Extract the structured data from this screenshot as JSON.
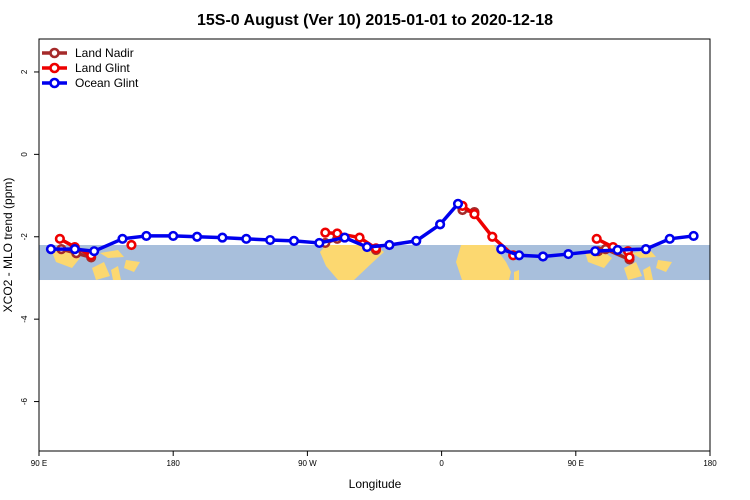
{
  "chart_data": {
    "type": "line",
    "title": "15S-0 August (Ver 10)   2015-01-01 to 2020-12-18",
    "xlabel": "Longitude",
    "ylabel": "XCO2 - MLO trend (ppm)",
    "xlim": [
      90,
      540
    ],
    "ylim": [
      -7.2,
      2.8
    ],
    "x_ticks": [
      {
        "value": 90,
        "label": "90 E"
      },
      {
        "value": 180,
        "label": "180"
      },
      {
        "value": 270,
        "label": "90 W"
      },
      {
        "value": 360,
        "label": "0"
      },
      {
        "value": 450,
        "label": "90 E"
      },
      {
        "value": 540,
        "label": "180"
      }
    ],
    "y_ticks": [
      {
        "value": 2,
        "label": "2"
      },
      {
        "value": 0,
        "label": "0"
      },
      {
        "value": -2,
        "label": "-2"
      },
      {
        "value": -4,
        "label": "-4"
      },
      {
        "value": -6,
        "label": "-6"
      }
    ],
    "background_band": {
      "ymin": -3.05,
      "ymax": -2.2,
      "ocean_color": "#a8bfdc",
      "land_color": "#fcd870"
    },
    "legend_position": "top-left",
    "series": [
      {
        "name": "Land Nadir",
        "color": "#a52a2a",
        "segments": [
          [
            [
              105,
              -2.3
            ],
            [
              115,
              -2.4
            ],
            [
              125,
              -2.5
            ]
          ],
          [
            [
              282,
              -2.15
            ],
            [
              290,
              -2.05
            ]
          ],
          [
            [
              316,
              -2.32
            ]
          ],
          [
            [
              374,
              -1.35
            ],
            [
              382,
              -1.4
            ]
          ],
          [
            [
              465,
              -2.35
            ],
            [
              470,
              -2.3
            ],
            [
              486,
              -2.55
            ]
          ]
        ]
      },
      {
        "name": "Land Glint",
        "color": "#ee0000",
        "segments": [
          [
            [
              104,
              -2.05
            ],
            [
              114,
              -2.25
            ],
            [
              125,
              -2.45
            ]
          ],
          [
            [
              152,
              -2.2
            ]
          ],
          [
            [
              282,
              -1.9
            ],
            [
              290,
              -1.92
            ],
            [
              305,
              -2.02
            ],
            [
              316,
              -2.28
            ]
          ],
          [
            [
              374,
              -1.25
            ],
            [
              382,
              -1.45
            ],
            [
              394,
              -2.0
            ],
            [
              408,
              -2.45
            ]
          ],
          [
            [
              464,
              -2.05
            ],
            [
              475,
              -2.25
            ],
            [
              485,
              -2.35
            ],
            [
              486,
              -2.5
            ]
          ]
        ]
      },
      {
        "name": "Ocean Glint",
        "color": "#0000ee",
        "segments": [
          [
            [
              98,
              -2.3
            ],
            [
              114,
              -2.3
            ],
            [
              127,
              -2.35
            ],
            [
              146,
              -2.05
            ],
            [
              162,
              -1.98
            ],
            [
              180,
              -1.98
            ],
            [
              196,
              -2.0
            ],
            [
              213,
              -2.02
            ],
            [
              229,
              -2.05
            ],
            [
              245,
              -2.08
            ],
            [
              261,
              -2.1
            ],
            [
              278,
              -2.15
            ],
            [
              295,
              -2.02
            ],
            [
              310,
              -2.25
            ],
            [
              325,
              -2.2
            ],
            [
              343,
              -2.1
            ],
            [
              359,
              -1.7
            ],
            [
              371,
              -1.2
            ]
          ],
          [
            [
              400,
              -2.3
            ],
            [
              412,
              -2.45
            ],
            [
              428,
              -2.48
            ],
            [
              445,
              -2.42
            ],
            [
              463,
              -2.35
            ],
            [
              478,
              -2.32
            ],
            [
              497,
              -2.3
            ],
            [
              513,
              -2.05
            ],
            [
              529,
              -1.98
            ]
          ]
        ]
      }
    ]
  }
}
